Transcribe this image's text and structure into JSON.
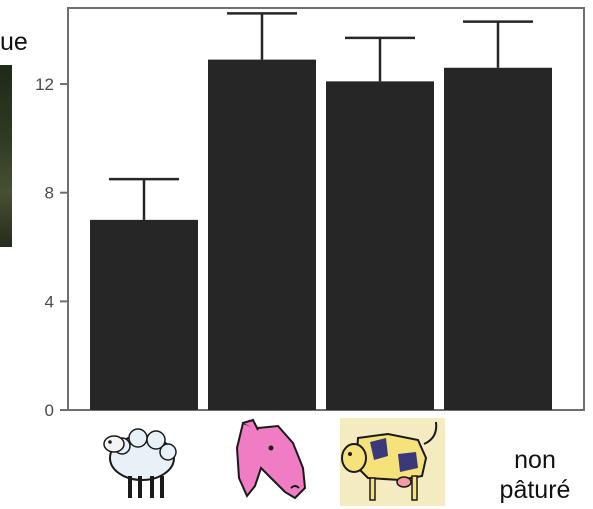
{
  "fragment_text": "ue",
  "chart_data": {
    "type": "bar",
    "categories": [
      "sheep-icon",
      "horse-icon",
      "cow-icon",
      "non pâturé"
    ],
    "values": [
      7.0,
      12.9,
      12.1,
      12.6
    ],
    "error_upper": [
      8.5,
      14.6,
      13.7,
      14.3
    ],
    "yticks": [
      0,
      4,
      8,
      12
    ],
    "ylim": [
      0,
      14.8
    ],
    "bar_color": "#262626",
    "grid": false
  },
  "category_labels": {
    "ungrazed_line1": "non",
    "ungrazed_line2": "pâturé"
  },
  "icons": [
    "sheep-icon",
    "horse-icon",
    "cow-icon"
  ]
}
